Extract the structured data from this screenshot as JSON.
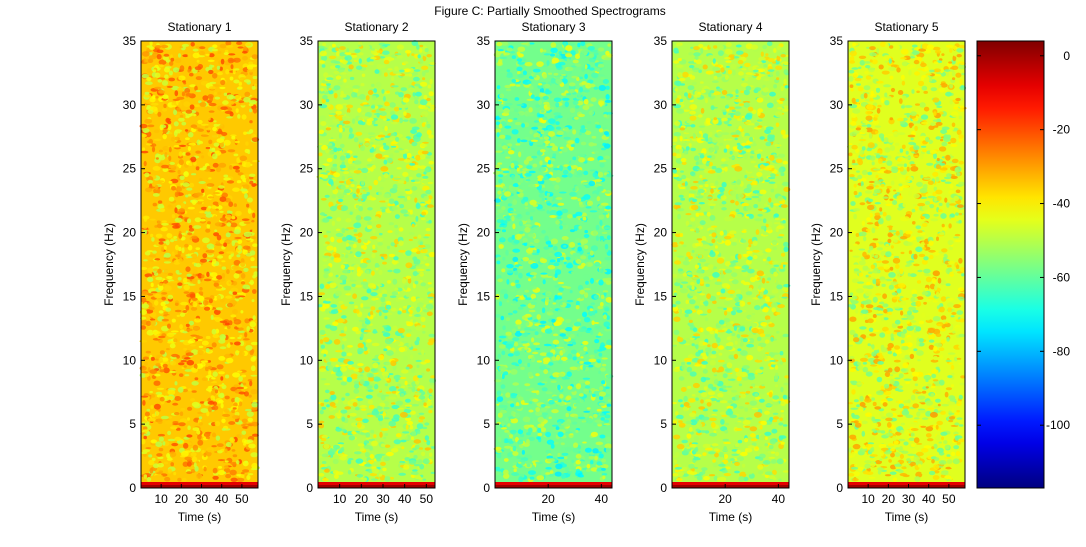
{
  "figure_title": "Figure C: Partially Smoothed Spectrograms",
  "colors": {
    "colormap": "jet",
    "low": "#00008f",
    "high": "#800000"
  },
  "chart_data": [
    {
      "type": "heatmap",
      "title": "Stationary 1",
      "xlabel": "Time (s)",
      "ylabel": "Frequency (Hz)",
      "xlim": [
        0,
        58
      ],
      "ylim": [
        0,
        35
      ],
      "xticks": [
        10,
        20,
        30,
        40,
        50
      ],
      "yticks": [
        0,
        5,
        10,
        15,
        20,
        25,
        30,
        35
      ],
      "typical_level_db": -35
    },
    {
      "type": "heatmap",
      "title": "Stationary 2",
      "xlabel": "Time (s)",
      "ylabel": "Frequency (Hz)",
      "xlim": [
        0,
        54
      ],
      "ylim": [
        0,
        35
      ],
      "xticks": [
        10,
        20,
        30,
        40,
        50
      ],
      "yticks": [
        0,
        5,
        10,
        15,
        20,
        25,
        30,
        35
      ],
      "typical_level_db": -50
    },
    {
      "type": "heatmap",
      "title": "Stationary 3",
      "xlabel": "Time (s)",
      "ylabel": "Frequency (Hz)",
      "xlim": [
        0,
        44
      ],
      "ylim": [
        0,
        35
      ],
      "xticks": [
        20,
        40
      ],
      "yticks": [
        0,
        5,
        10,
        15,
        20,
        25,
        30,
        35
      ],
      "typical_level_db": -58
    },
    {
      "type": "heatmap",
      "title": "Stationary 4",
      "xlabel": "Time (s)",
      "ylabel": "Frequency (Hz)",
      "xlim": [
        0,
        44
      ],
      "ylim": [
        0,
        35
      ],
      "xticks": [
        20,
        40
      ],
      "yticks": [
        0,
        5,
        10,
        15,
        20,
        25,
        30,
        35
      ],
      "typical_level_db": -50
    },
    {
      "type": "heatmap",
      "title": "Stationary 5",
      "xlabel": "Time (s)",
      "ylabel": "Frequency (Hz)",
      "xlim": [
        0,
        58
      ],
      "ylim": [
        0,
        35
      ],
      "xticks": [
        10,
        20,
        30,
        40,
        50
      ],
      "yticks": [
        0,
        5,
        10,
        15,
        20,
        25,
        30,
        35
      ],
      "typical_level_db": -45
    }
  ],
  "colorbar": {
    "range": [
      -117,
      4
    ],
    "ticks": [
      0,
      -20,
      -40,
      -60,
      -80,
      -100
    ]
  }
}
